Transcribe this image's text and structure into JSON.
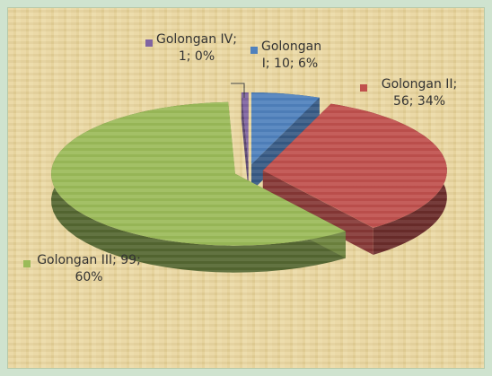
{
  "chart_data": {
    "type": "pie3d",
    "categories": [
      "Golongan I",
      "Golongan II",
      "Golongan III",
      "Golongan IV"
    ],
    "values": [
      10,
      56,
      99,
      1
    ],
    "value_labels": [
      "Golongan I; 10; 6%",
      "Golongan II; 56; 34%",
      "Golongan III; 99; 60%",
      "Golongan IV; 1; 0%"
    ],
    "colors": [
      "#4f81bd",
      "#c0504d",
      "#9bbb59",
      "#8064a2"
    ]
  }
}
